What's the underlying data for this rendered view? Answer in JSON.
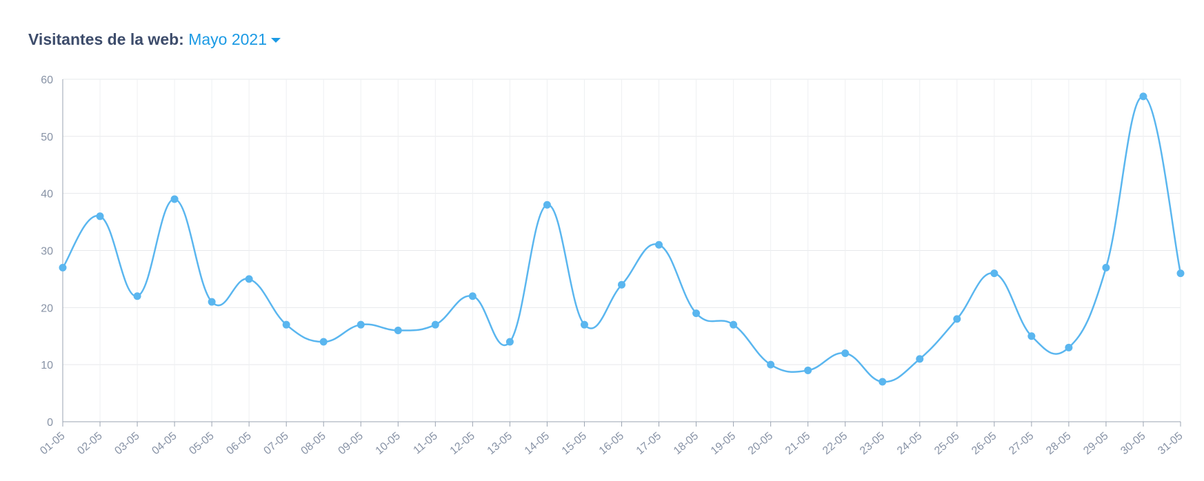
{
  "chart_data": {
    "type": "line",
    "title": "Visitantes de la web:",
    "period": "Mayo 2021",
    "categories": [
      "01-05",
      "02-05",
      "03-05",
      "04-05",
      "05-05",
      "06-05",
      "07-05",
      "08-05",
      "09-05",
      "10-05",
      "11-05",
      "12-05",
      "13-05",
      "14-05",
      "15-05",
      "16-05",
      "17-05",
      "18-05",
      "19-05",
      "20-05",
      "21-05",
      "22-05",
      "23-05",
      "24-05",
      "25-05",
      "26-05",
      "27-05",
      "28-05",
      "29-05",
      "30-05",
      "31-05"
    ],
    "series": [
      {
        "color": "#5ab6ef",
        "values": [
          27,
          36,
          22,
          39,
          21,
          25,
          17,
          14,
          17,
          16,
          17,
          22,
          14,
          38,
          17,
          24,
          31,
          19,
          17,
          10,
          9,
          12,
          7,
          11,
          18,
          26,
          15,
          13,
          27,
          57,
          26
        ]
      }
    ],
    "ylim": [
      0,
      60
    ],
    "yticks": [
      0,
      10,
      20,
      30,
      40,
      50,
      60
    ],
    "grid": true
  }
}
